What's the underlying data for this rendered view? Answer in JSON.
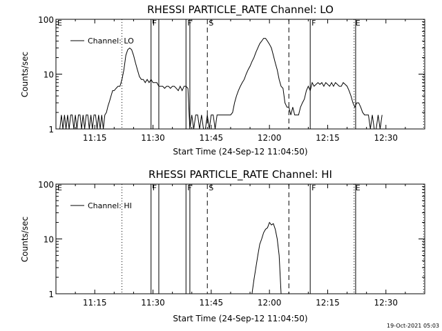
{
  "footer": {
    "timestamp": "19-Oct-2021 05:03"
  },
  "chart_data": [
    {
      "type": "line",
      "title": "RHESSI PARTICLE_RATE Channel: LO",
      "xlabel": "Start Time (24-Sep-12 11:04:50)",
      "ylabel": "Counts/sec",
      "yscale": "log",
      "ylim": [
        1,
        100
      ],
      "xlim_minutes": [
        665,
        760
      ],
      "x_ticks": [
        "11:15",
        "11:30",
        "11:45",
        "12:00",
        "12:15",
        "12:30"
      ],
      "x_tick_minutes": [
        675,
        690,
        705,
        720,
        735,
        750
      ],
      "y_ticks": [
        "1",
        "10",
        "100"
      ],
      "y_tick_values": [
        1,
        10,
        100
      ],
      "legend": {
        "label": "Channel: LO",
        "position": "top-left"
      },
      "flags": [
        {
          "label": "E",
          "minute": 665,
          "style": "dotted"
        },
        {
          "label": "",
          "minute": 682,
          "style": "dotted"
        },
        {
          "label": "F",
          "minute": 689.5,
          "style": "solid"
        },
        {
          "label": "",
          "minute": 691.5,
          "style": "solid"
        },
        {
          "label": "F",
          "minute": 698.5,
          "style": "solid"
        },
        {
          "label": "",
          "minute": 699.5,
          "style": "solid"
        },
        {
          "label": "S",
          "minute": 704,
          "style": "dashed"
        },
        {
          "label": "",
          "minute": 725,
          "style": "dashed"
        },
        {
          "label": "F",
          "minute": 730.5,
          "style": "solid"
        },
        {
          "label": "E",
          "minute": 741.8,
          "style": "dotted"
        },
        {
          "label": "",
          "minute": 742.2,
          "style": "solid"
        },
        {
          "label": "",
          "minute": 759.7,
          "style": "dotted"
        }
      ],
      "series": [
        {
          "name": "Channel: LO",
          "x": [
            666,
            666.4,
            666.8,
            667.2,
            667.6,
            668,
            668.4,
            668.8,
            669.2,
            669.6,
            670,
            670.4,
            670.8,
            671.2,
            671.6,
            672,
            672.4,
            672.8,
            673.2,
            673.6,
            674,
            674.4,
            674.8,
            675.2,
            675.6,
            676,
            676.4,
            676.8,
            677.2,
            677.6,
            678,
            678.4,
            678.8,
            679.2,
            679.6,
            680,
            680.5,
            681,
            681.5,
            682,
            682.5,
            683,
            683.5,
            684,
            684.5,
            685,
            685.5,
            686,
            686.5,
            687,
            687.5,
            688,
            688.5,
            689,
            689.5,
            690,
            690.5,
            691,
            691.5,
            692,
            692.5,
            693,
            693.5,
            694,
            694.5,
            695,
            695.5,
            696,
            696.5,
            697,
            697.5,
            698,
            698.5,
            699,
            699.5,
            700,
            700.5,
            701,
            701.5,
            702,
            702.5,
            703,
            703.5,
            704,
            704.5,
            705,
            705.5,
            706,
            706.5,
            707,
            707.5,
            708,
            708.5,
            709,
            709.5,
            710,
            710.5,
            711,
            711.5,
            712,
            712.5,
            713,
            713.5,
            714,
            714.5,
            715,
            715.5,
            716,
            716.5,
            717,
            717.5,
            718,
            718.5,
            719,
            719.5,
            720,
            720.5,
            721,
            721.5,
            722,
            722.5,
            723,
            723.5,
            724,
            724.5,
            725,
            725.5,
            726,
            726.5,
            727,
            727.5,
            728,
            728.5,
            729,
            729.5,
            730,
            730.5,
            731,
            731.5,
            732,
            732.5,
            733,
            733.5,
            734,
            734.5,
            735,
            735.5,
            736,
            736.5,
            737,
            737.5,
            738,
            738.5,
            739,
            739.5,
            740,
            740.5,
            741,
            741.5,
            742,
            742.5,
            743,
            743.5,
            744,
            744.5,
            745,
            745.5,
            746,
            746.5,
            747,
            747.5,
            748,
            748.5,
            749
          ],
          "values": [
            1,
            1.8,
            1,
            1.8,
            1,
            1.8,
            1,
            1.8,
            1.8,
            1,
            1.8,
            1,
            1.8,
            1.8,
            1,
            1.8,
            1,
            1.8,
            1.8,
            1,
            1.8,
            1,
            1.8,
            1.8,
            1,
            1.8,
            1,
            1.8,
            1,
            1.8,
            2,
            2.6,
            3.2,
            4,
            5,
            5,
            5.5,
            6,
            6,
            8,
            12,
            22,
            28,
            30,
            28,
            22,
            16,
            12,
            9,
            8,
            8,
            7,
            8,
            7,
            8,
            7,
            7,
            7,
            6,
            6,
            6,
            5.5,
            6,
            6,
            5.5,
            6,
            6,
            5.5,
            5,
            6,
            5,
            6,
            6,
            5.5,
            1,
            1.8,
            1,
            1.8,
            1.8,
            1,
            1.8,
            1,
            1,
            1.8,
            1,
            1.8,
            1.8,
            1,
            1.8,
            1.8,
            1.8,
            1.8,
            1.8,
            1.8,
            1.8,
            1.8,
            2,
            3,
            4,
            5,
            6,
            7,
            8,
            10,
            12,
            14,
            17,
            20,
            25,
            30,
            36,
            40,
            45,
            45,
            40,
            35,
            30,
            22,
            16,
            12,
            8,
            6,
            5.5,
            3,
            2.5,
            2.5,
            1.8,
            2.5,
            1.8,
            1.8,
            1.8,
            2.5,
            3,
            3.5,
            5,
            6,
            5,
            7,
            6,
            6.5,
            7,
            6.5,
            7,
            6,
            7,
            6.5,
            6,
            7,
            6,
            7,
            6.5,
            6,
            6,
            7,
            6.5,
            6,
            5,
            4,
            3,
            2.5,
            3,
            3,
            2.5,
            2,
            1.8,
            1.8,
            1.8,
            1,
            1.8,
            1,
            1,
            1.8,
            1,
            1.8
          ]
        }
      ]
    },
    {
      "type": "line",
      "title": "RHESSI PARTICLE_RATE Channel: HI",
      "xlabel": "Start Time (24-Sep-12 11:04:50)",
      "ylabel": "Counts/sec",
      "yscale": "log",
      "ylim": [
        1,
        100
      ],
      "xlim_minutes": [
        665,
        760
      ],
      "x_ticks": [
        "11:15",
        "11:30",
        "11:45",
        "12:00",
        "12:15",
        "12:30"
      ],
      "x_tick_minutes": [
        675,
        690,
        705,
        720,
        735,
        750
      ],
      "y_ticks": [
        "1",
        "10",
        "100"
      ],
      "y_tick_values": [
        1,
        10,
        100
      ],
      "legend": {
        "label": "Channel: HI",
        "position": "top-left"
      },
      "flags": [
        {
          "label": "E",
          "minute": 665,
          "style": "dotted"
        },
        {
          "label": "",
          "minute": 682,
          "style": "dotted"
        },
        {
          "label": "F",
          "minute": 689.5,
          "style": "solid"
        },
        {
          "label": "",
          "minute": 691.5,
          "style": "solid"
        },
        {
          "label": "F",
          "minute": 698.5,
          "style": "solid"
        },
        {
          "label": "",
          "minute": 699.5,
          "style": "solid"
        },
        {
          "label": "S",
          "minute": 704,
          "style": "dashed"
        },
        {
          "label": "",
          "minute": 725,
          "style": "dashed"
        },
        {
          "label": "F",
          "minute": 730.5,
          "style": "solid"
        },
        {
          "label": "E",
          "minute": 741.8,
          "style": "dotted"
        },
        {
          "label": "",
          "minute": 742.2,
          "style": "solid"
        },
        {
          "label": "",
          "minute": 759.7,
          "style": "dotted"
        }
      ],
      "series": [
        {
          "name": "Channel: HI",
          "x": [
            715.5,
            716,
            716.5,
            717,
            717.5,
            718,
            718.5,
            719,
            719.5,
            720,
            720.5,
            721,
            721.5,
            722,
            722.5,
            723
          ],
          "values": [
            1,
            1.8,
            3,
            5,
            8,
            10,
            13,
            15,
            16,
            20,
            18,
            19,
            15,
            10,
            5,
            1
          ]
        }
      ]
    }
  ]
}
